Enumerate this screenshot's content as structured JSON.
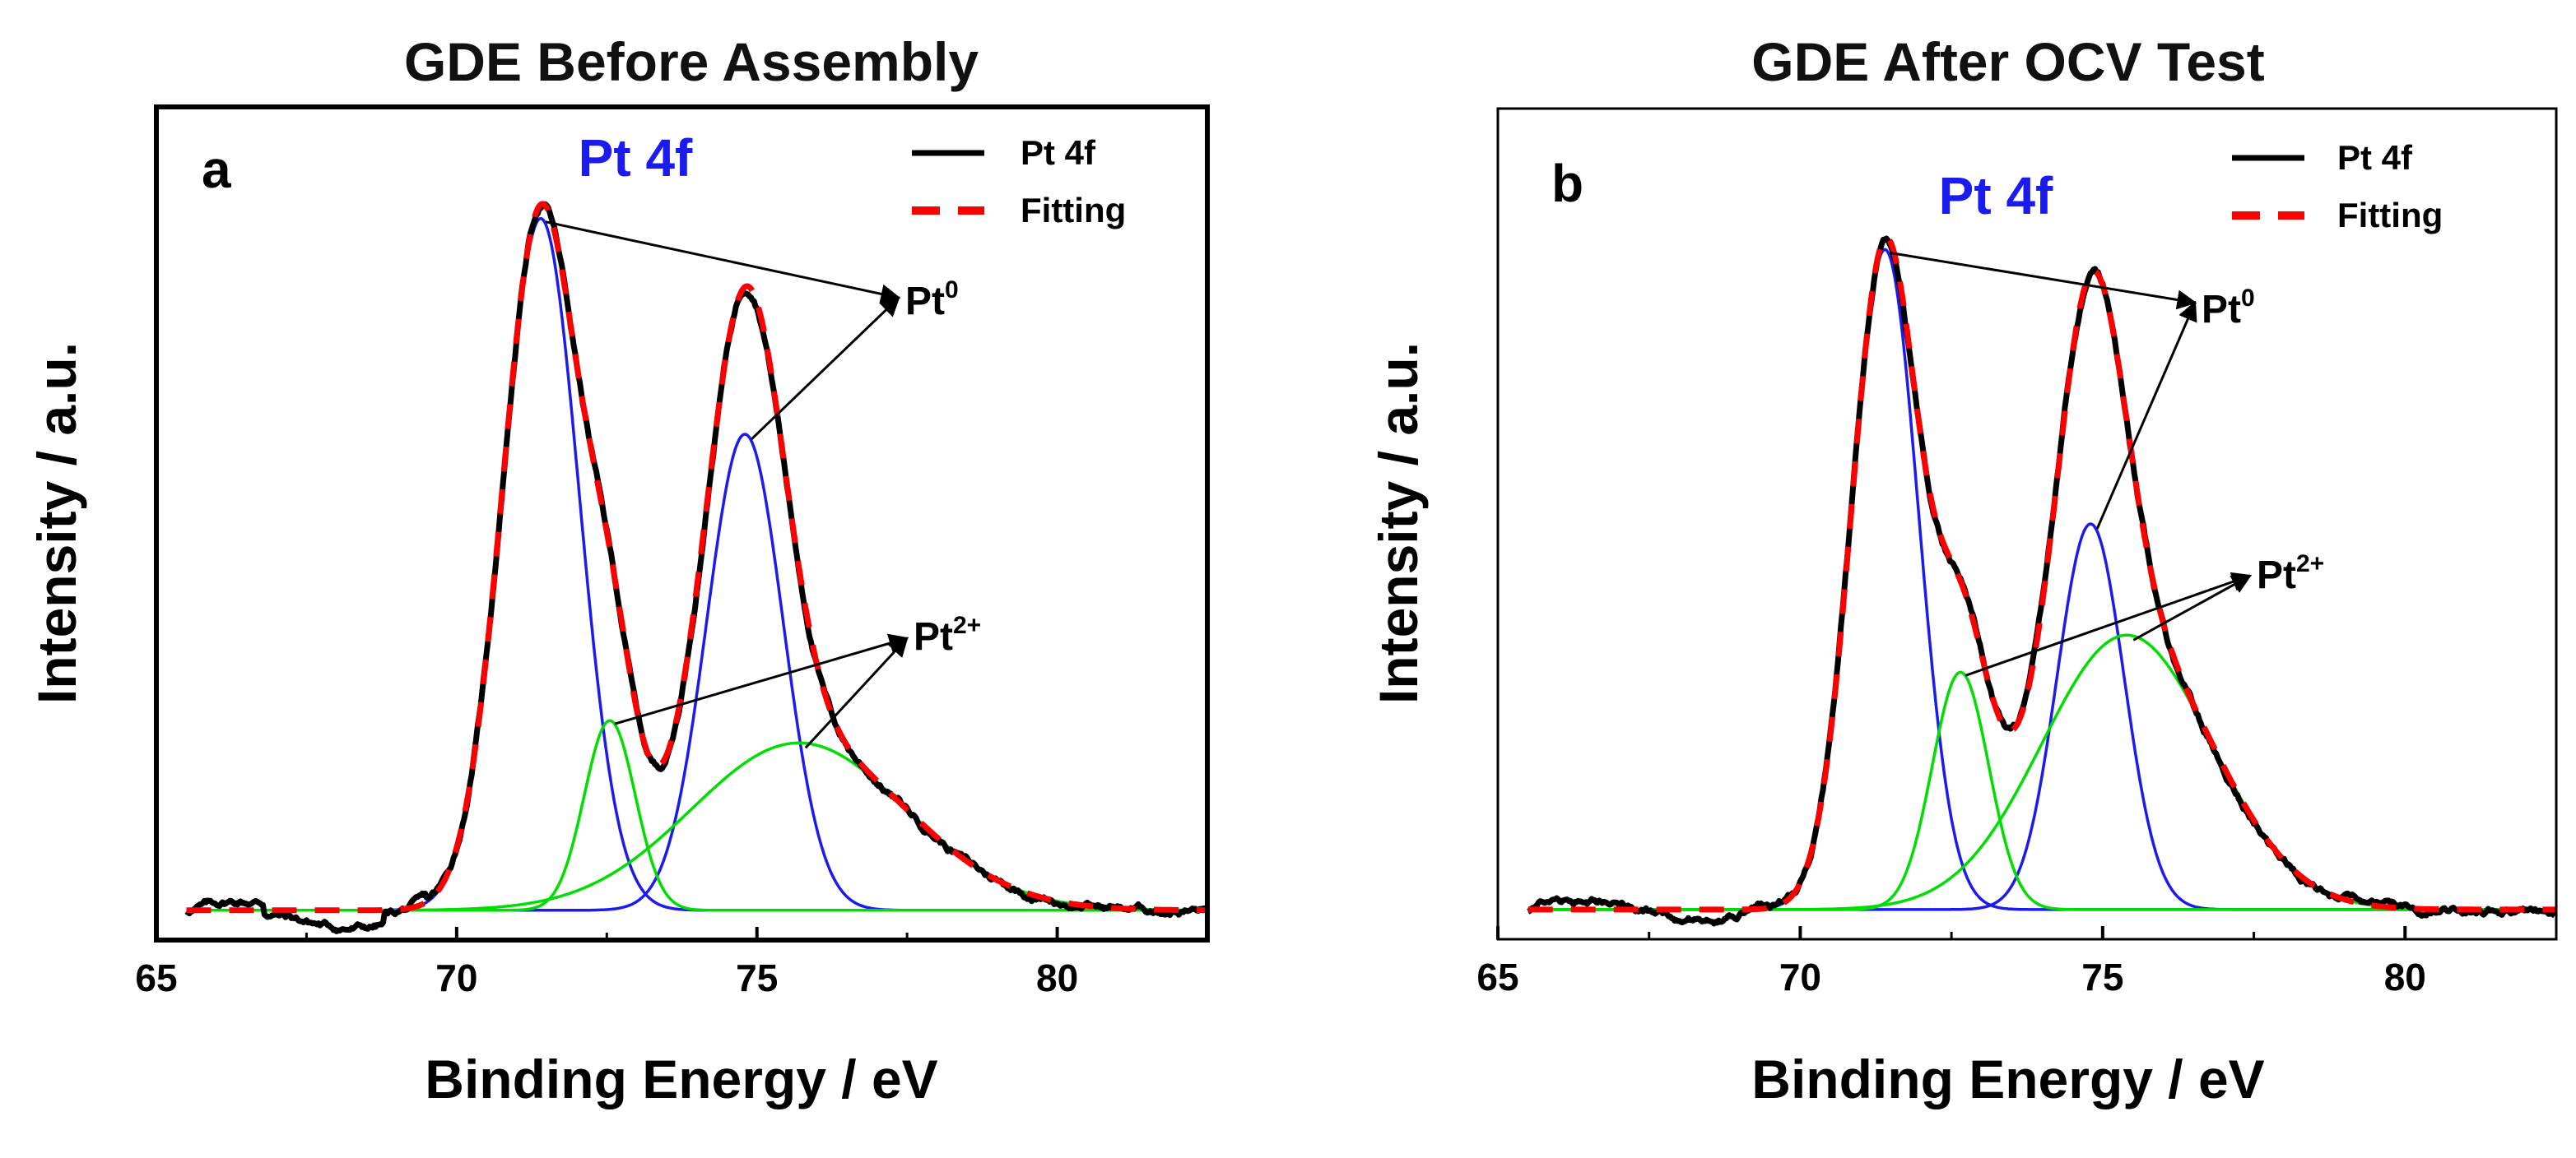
{
  "chart_data": [
    {
      "type": "line",
      "panel_label": "a",
      "title": "GDE Before Assembly",
      "core_level": "Pt 4f",
      "xlabel": "Binding Energy / eV",
      "ylabel": "Intensity / a.u.",
      "xlim": [
        65,
        82.5
      ],
      "xticks": [
        65,
        70,
        75,
        80
      ],
      "ylim": [
        -0.04,
        1.08
      ],
      "yticks": "none",
      "legend": {
        "position": "top-right",
        "entries": [
          {
            "label": "Pt 4f",
            "style": "solid",
            "color": "#000000"
          },
          {
            "label": "Fitting",
            "style": "dashed",
            "color": "#ff0000"
          }
        ]
      },
      "components": [
        {
          "name": "Pt0 4f7/2",
          "state": "Pt0",
          "center": 71.4,
          "height": 0.93,
          "fwhm": 1.5,
          "color": "#1b1bf0"
        },
        {
          "name": "Pt0 4f5/2",
          "state": "Pt0",
          "center": 74.8,
          "height": 0.64,
          "fwhm": 1.5,
          "color": "#1b1bf0"
        },
        {
          "name": "Pt2+ 4f7/2",
          "state": "Pt2+",
          "center": 72.55,
          "height": 0.255,
          "fwhm": 1.0,
          "color": "#00dd00"
        },
        {
          "name": "Pt2+ 4f5/2",
          "state": "Pt2+",
          "center": 75.7,
          "height": 0.225,
          "fwhm": 4.2,
          "color": "#00dd00"
        }
      ],
      "annotations": [
        {
          "label": "Pt",
          "superscript": "0",
          "from_peaks": [
            71.4,
            74.8
          ]
        },
        {
          "label": "Pt",
          "superscript": "2+",
          "from_peaks": [
            72.55,
            75.7
          ]
        }
      ]
    },
    {
      "type": "line",
      "panel_label": "b",
      "title": "GDE After OCV Test",
      "core_level": "Pt 4f",
      "xlabel": "Binding Energy / eV",
      "ylabel": "Intensity / a.u.",
      "xlim": [
        65,
        82.5
      ],
      "xticks": [
        65,
        70,
        75,
        80
      ],
      "ylim": [
        -0.04,
        1.08
      ],
      "yticks": "none",
      "legend": {
        "position": "top-right",
        "entries": [
          {
            "label": "Pt 4f",
            "style": "solid",
            "color": "#000000"
          },
          {
            "label": "Fitting",
            "style": "dashed",
            "color": "#ff0000"
          }
        ]
      },
      "components": [
        {
          "name": "Pt0 4f7/2",
          "state": "Pt0",
          "center": 71.4,
          "height": 0.89,
          "fwhm": 1.3,
          "color": "#1b1bf0"
        },
        {
          "name": "Pt0 4f5/2",
          "state": "Pt0",
          "center": 74.8,
          "height": 0.52,
          "fwhm": 1.3,
          "color": "#1b1bf0"
        },
        {
          "name": "Pt2+ 4f7/2",
          "state": "Pt2+",
          "center": 72.65,
          "height": 0.32,
          "fwhm": 1.1,
          "color": "#00dd00"
        },
        {
          "name": "Pt2+ 4f5/2",
          "state": "Pt2+",
          "center": 75.4,
          "height": 0.37,
          "fwhm": 3.3,
          "color": "#00dd00"
        }
      ],
      "annotations": [
        {
          "label": "Pt",
          "superscript": "0",
          "from_peaks": [
            71.4,
            74.8
          ]
        },
        {
          "label": "Pt",
          "superscript": "2+",
          "from_peaks": [
            72.65,
            75.4
          ]
        }
      ]
    }
  ]
}
